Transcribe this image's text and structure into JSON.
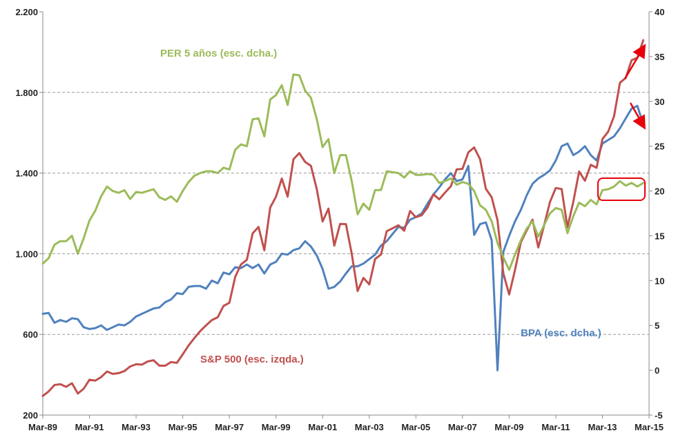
{
  "chart_data": {
    "type": "line",
    "title": "",
    "x_tick_labels": [
      "Mar-89",
      "Mar-91",
      "Mar-93",
      "Mar-95",
      "Mar-97",
      "Mar-99",
      "Mar-01",
      "Mar-03",
      "Mar-05",
      "Mar-07",
      "Mar-09",
      "Mar-11",
      "Mar-13",
      "Mar-15"
    ],
    "x_tick_years": [
      1989.25,
      1991.25,
      1993.25,
      1995.25,
      1997.25,
      1999.25,
      2001.25,
      2003.25,
      2005.25,
      2007.25,
      2009.25,
      2011.25,
      2013.25,
      2015.25
    ],
    "left_axis": {
      "ylim": [
        200,
        2200
      ],
      "ticks": [
        200,
        600,
        1000,
        1400,
        1800,
        2200
      ],
      "tick_labels": [
        "200",
        "600",
        "1.000",
        "1.400",
        "1.800",
        "2.200"
      ]
    },
    "right_axis": {
      "ylim": [
        -5,
        40
      ],
      "ticks": [
        -5,
        0,
        5,
        10,
        15,
        20,
        25,
        30,
        35,
        40
      ],
      "tick_labels": [
        "-5",
        "0",
        "5",
        "10",
        "15",
        "20",
        "25",
        "30",
        "35",
        "40"
      ]
    },
    "grid": true,
    "series": [
      {
        "name": "S&P 500 (esc. izqda.)",
        "axis": "left",
        "color": "#C0504D",
        "x": [
          1989.25,
          1989.5,
          1989.75,
          1990.0,
          1990.25,
          1990.5,
          1990.75,
          1991.0,
          1991.25,
          1991.5,
          1991.75,
          1992.0,
          1992.25,
          1992.5,
          1992.75,
          1993.0,
          1993.25,
          1993.5,
          1993.75,
          1994.0,
          1994.25,
          1994.5,
          1994.75,
          1995.0,
          1995.25,
          1995.5,
          1995.75,
          1996.0,
          1996.25,
          1996.5,
          1996.75,
          1997.0,
          1997.25,
          1997.5,
          1997.75,
          1998.0,
          1998.25,
          1998.5,
          1998.75,
          1999.0,
          1999.25,
          1999.5,
          1999.75,
          2000.0,
          2000.25,
          2000.5,
          2000.75,
          2001.0,
          2001.25,
          2001.5,
          2001.75,
          2002.0,
          2002.25,
          2002.5,
          2002.75,
          2003.0,
          2003.25,
          2003.5,
          2003.75,
          2004.0,
          2004.25,
          2004.5,
          2004.75,
          2005.0,
          2005.25,
          2005.5,
          2005.75,
          2006.0,
          2006.25,
          2006.5,
          2006.75,
          2007.0,
          2007.25,
          2007.5,
          2007.75,
          2008.0,
          2008.25,
          2008.5,
          2008.75,
          2009.0,
          2009.25,
          2009.5,
          2009.75,
          2010.0,
          2010.25,
          2010.5,
          2010.75,
          2011.0,
          2011.25,
          2011.5,
          2011.75,
          2012.0,
          2012.25,
          2012.5,
          2012.75,
          2013.0,
          2013.25,
          2013.5,
          2013.75,
          2014.0,
          2014.25,
          2014.5,
          2014.75,
          2015.0
        ],
        "values": [
          295,
          317,
          349,
          353,
          340,
          358,
          307,
          330,
          375,
          371,
          388,
          416,
          404,
          408,
          418,
          441,
          452,
          450,
          466,
          472,
          445,
          445,
          463,
          459,
          501,
          545,
          582,
          616,
          645,
          671,
          685,
          741,
          757,
          885,
          947,
          970,
          1101,
          1133,
          1017,
          1229,
          1283,
          1373,
          1283,
          1469,
          1499,
          1455,
          1436,
          1320,
          1160,
          1224,
          1040,
          1148,
          1147,
          1000,
          815,
          880,
          848,
          974,
          996,
          1112,
          1126,
          1141,
          1114,
          1212,
          1181,
          1191,
          1229,
          1295,
          1270,
          1303,
          1335,
          1418,
          1421,
          1503,
          1527,
          1469,
          1322,
          1280,
          1166,
          903,
          798,
          919,
          1057,
          1115,
          1169,
          1031,
          1141,
          1257,
          1326,
          1321,
          1131,
          1258,
          1408,
          1362,
          1441,
          1426,
          1569,
          1606,
          1682,
          1848,
          1872,
          1960,
          1972,
          2059
        ]
      },
      {
        "name": "BPA (esc. dcha.)",
        "axis": "right",
        "color": "#4F81BD",
        "x": [
          1989.25,
          1989.5,
          1989.75,
          1990.0,
          1990.25,
          1990.5,
          1990.75,
          1991.0,
          1991.25,
          1991.5,
          1991.75,
          1992.0,
          1992.25,
          1992.5,
          1992.75,
          1993.0,
          1993.25,
          1993.5,
          1993.75,
          1994.0,
          1994.25,
          1994.5,
          1994.75,
          1995.0,
          1995.25,
          1995.5,
          1995.75,
          1996.0,
          1996.25,
          1996.5,
          1996.75,
          1997.0,
          1997.25,
          1997.5,
          1997.75,
          1998.0,
          1998.25,
          1998.5,
          1998.75,
          1999.0,
          1999.25,
          1999.5,
          1999.75,
          2000.0,
          2000.25,
          2000.5,
          2000.75,
          2001.0,
          2001.25,
          2001.5,
          2001.75,
          2002.0,
          2002.25,
          2002.5,
          2002.75,
          2003.0,
          2003.25,
          2003.5,
          2003.75,
          2004.0,
          2004.25,
          2004.5,
          2004.75,
          2005.0,
          2005.25,
          2005.5,
          2005.75,
          2006.0,
          2006.25,
          2006.5,
          2006.75,
          2007.0,
          2007.25,
          2007.5,
          2007.75,
          2008.0,
          2008.25,
          2008.5,
          2008.75,
          2009.0,
          2009.25,
          2009.5,
          2009.75,
          2010.0,
          2010.25,
          2010.5,
          2010.75,
          2011.0,
          2011.25,
          2011.5,
          2011.75,
          2012.0,
          2012.25,
          2012.5,
          2012.75,
          2013.0,
          2013.25,
          2013.5,
          2013.75,
          2014.0,
          2014.25,
          2014.5,
          2014.75,
          2015.0
        ],
        "values": [
          6.3,
          6.4,
          5.3,
          5.6,
          5.4,
          5.8,
          5.7,
          4.8,
          4.6,
          4.7,
          5.0,
          4.5,
          4.8,
          5.1,
          5.0,
          5.4,
          6.0,
          6.3,
          6.6,
          6.9,
          7.0,
          7.6,
          7.9,
          8.6,
          8.5,
          9.3,
          9.4,
          9.4,
          9.1,
          10.0,
          9.7,
          10.9,
          10.7,
          11.5,
          11.4,
          11.8,
          11.4,
          11.8,
          10.8,
          11.8,
          12.1,
          13.0,
          12.9,
          13.4,
          13.6,
          14.4,
          13.8,
          12.8,
          11.3,
          9.1,
          9.3,
          9.9,
          10.8,
          11.6,
          11.6,
          11.9,
          12.4,
          12.9,
          13.9,
          14.4,
          15.2,
          16.0,
          15.9,
          16.8,
          17.1,
          17.5,
          18.6,
          19.6,
          20.4,
          21.3,
          22.0,
          21.1,
          21.3,
          22.8,
          15.1,
          16.3,
          16.5,
          14.5,
          0.0,
          13.2,
          15.0,
          16.6,
          17.9,
          19.5,
          20.8,
          21.4,
          21.8,
          22.3,
          23.4,
          25.0,
          25.3,
          24.0,
          24.4,
          25.0,
          24.0,
          23.4,
          25.3,
          25.7,
          26.1,
          27.0,
          28.1,
          29.2,
          29.5,
          27.4
        ]
      },
      {
        "name": "PER 5 años (esc. dcha.)",
        "axis": "right",
        "color": "#9BBB59",
        "x": [
          1989.25,
          1989.5,
          1989.75,
          1990.0,
          1990.25,
          1990.5,
          1990.75,
          1991.0,
          1991.25,
          1991.5,
          1991.75,
          1992.0,
          1992.25,
          1992.5,
          1992.75,
          1993.0,
          1993.25,
          1993.5,
          1993.75,
          1994.0,
          1994.25,
          1994.5,
          1994.75,
          1995.0,
          1995.25,
          1995.5,
          1995.75,
          1996.0,
          1996.25,
          1996.5,
          1996.75,
          1997.0,
          1997.25,
          1997.5,
          1997.75,
          1998.0,
          1998.25,
          1998.5,
          1998.75,
          1999.0,
          1999.25,
          1999.5,
          1999.75,
          2000.0,
          2000.25,
          2000.5,
          2000.75,
          2001.0,
          2001.25,
          2001.5,
          2001.75,
          2002.0,
          2002.25,
          2002.5,
          2002.75,
          2003.0,
          2003.25,
          2003.5,
          2003.75,
          2004.0,
          2004.25,
          2004.5,
          2004.75,
          2005.0,
          2005.25,
          2005.5,
          2005.75,
          2006.0,
          2006.25,
          2006.5,
          2006.75,
          2007.0,
          2007.25,
          2007.5,
          2007.75,
          2008.0,
          2008.25,
          2008.5,
          2008.75,
          2009.0,
          2009.25,
          2009.5,
          2009.75,
          2010.0,
          2010.25,
          2010.5,
          2010.75,
          2011.0,
          2011.25,
          2011.5,
          2011.75,
          2012.0,
          2012.25,
          2012.5,
          2012.75,
          2013.0,
          2013.25,
          2013.5,
          2013.75,
          2014.0,
          2014.25,
          2014.5,
          2014.75,
          2015.0
        ],
        "values": [
          11.9,
          12.5,
          14.0,
          14.4,
          14.4,
          15.0,
          13.0,
          14.7,
          16.7,
          17.8,
          19.4,
          20.5,
          20.0,
          19.8,
          20.1,
          19.1,
          19.9,
          19.8,
          20.0,
          20.2,
          19.3,
          19.0,
          19.4,
          18.8,
          20.0,
          21.0,
          21.7,
          22.0,
          22.2,
          22.2,
          22.0,
          22.6,
          22.4,
          24.6,
          25.2,
          25.0,
          28.0,
          28.1,
          26.1,
          30.2,
          30.7,
          31.8,
          29.6,
          33.0,
          32.9,
          31.2,
          30.4,
          28.0,
          24.9,
          25.8,
          22.0,
          24.0,
          24.0,
          21.1,
          17.4,
          18.6,
          17.9,
          20.1,
          20.1,
          22.2,
          22.1,
          22.0,
          21.5,
          22.2,
          21.8,
          21.8,
          21.9,
          21.8,
          20.9,
          21.1,
          21.4,
          20.7,
          21.0,
          20.8,
          20.0,
          18.4,
          17.9,
          16.6,
          14.2,
          12.6,
          11.2,
          12.9,
          14.5,
          15.8,
          16.6,
          14.9,
          16.2,
          17.5,
          18.1,
          17.9,
          15.3,
          17.2,
          18.7,
          18.3,
          19.0,
          18.5,
          20.1,
          20.2,
          20.5,
          21.1,
          20.6,
          20.9,
          20.5,
          20.9
        ]
      }
    ],
    "annotations": [
      {
        "text": "PER 5 años (esc. dcha.)",
        "color": "#9BBB59"
      },
      {
        "text": "S&P 500 (esc. izqda.)",
        "color": "#C0504D"
      },
      {
        "text": "BPA (esc. dcha.)",
        "color": "#4F81BD"
      }
    ],
    "highlights": {
      "color": "#E8000B",
      "arrows": [
        "up",
        "down"
      ],
      "box": "around latest PER values"
    }
  }
}
